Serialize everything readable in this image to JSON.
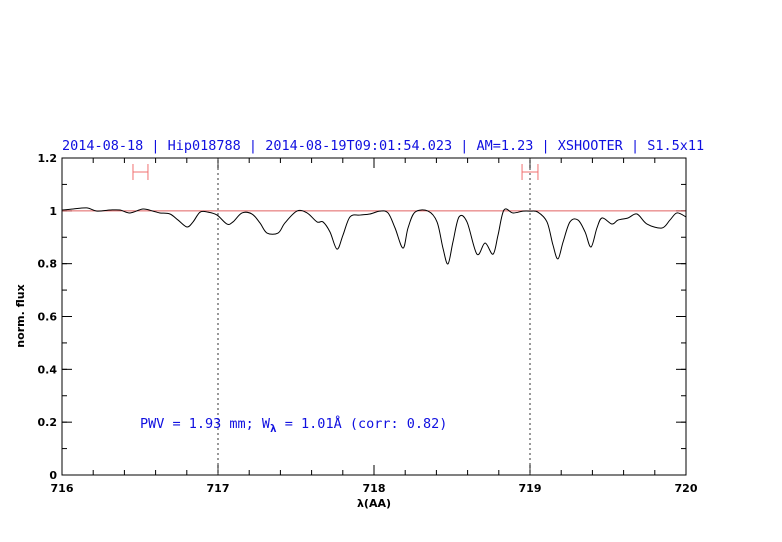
{
  "chart_data": {
    "type": "line",
    "title": "2014-08-18 | Hip018788 | 2014-08-19T09:01:54.023 | AM=1.23 | XSHOOTER | S1.5x11",
    "xlabel": "λ(AA)",
    "ylabel": "norm. flux",
    "xlim": [
      716,
      720
    ],
    "ylim": [
      0,
      1.2
    ],
    "x_ticks": [
      716,
      717,
      718,
      719,
      720
    ],
    "x_tick_labels": [
      "716",
      "717",
      "718",
      "719",
      "720"
    ],
    "x_minor_step": 0.2,
    "y_ticks": [
      0,
      0.2,
      0.4,
      0.6,
      0.8,
      1,
      1.2
    ],
    "y_tick_labels": [
      "0",
      "0.2",
      "0.4",
      "0.6",
      "0.8",
      "1",
      "1.2"
    ],
    "y_minor_step": 0.1,
    "grid": false,
    "reference_line": {
      "y": 1,
      "color": "#e06060"
    },
    "vertical_dotted_lines": [
      717,
      719
    ],
    "range_markers": [
      {
        "x0": 716.455,
        "x1": 716.551,
        "y": 1.147,
        "color": "#f07070"
      },
      {
        "x0": 718.949,
        "x1": 719.051,
        "y": 1.147,
        "color": "#f07070"
      }
    ],
    "annotation": {
      "text": "PWV = 1.93 mm; W",
      "subscript": "λ",
      "text_after": " = 1.01Å (corr: 0.82)",
      "x": 716.5,
      "y": 0.19
    },
    "colors": {
      "title": "#1010e0",
      "spectrum": "#000000"
    },
    "series": [
      {
        "x": [
          716.0,
          716.071,
          716.16,
          716.224,
          716.308,
          716.372,
          716.436,
          716.519,
          716.583,
          716.628,
          716.692,
          716.744,
          716.801,
          716.84,
          716.885,
          716.936,
          716.994,
          717.058,
          717.096,
          717.154,
          717.218,
          717.269,
          717.314,
          717.385,
          717.429,
          717.506,
          717.571,
          717.635,
          717.673,
          717.718,
          717.763,
          717.801,
          717.846,
          717.91,
          717.974,
          718.038,
          718.09,
          718.135,
          718.186,
          718.218,
          718.263,
          718.346,
          718.404,
          718.442,
          718.474,
          718.506,
          718.545,
          718.596,
          718.66,
          718.712,
          718.763,
          718.795,
          718.833,
          718.891,
          718.955,
          719.0,
          719.051,
          719.109,
          719.147,
          719.179,
          719.212,
          719.256,
          719.308,
          719.353,
          719.391,
          719.429,
          719.462,
          719.526,
          719.564,
          719.628,
          719.686,
          719.75,
          719.846,
          719.897,
          719.942,
          720.0
        ],
        "y": [
          1.003,
          1.007,
          1.011,
          0.999,
          1.003,
          1.003,
          0.992,
          1.007,
          0.999,
          0.992,
          0.988,
          0.965,
          0.939,
          0.958,
          0.995,
          0.995,
          0.984,
          0.95,
          0.958,
          0.992,
          0.988,
          0.954,
          0.916,
          0.916,
          0.954,
          0.999,
          0.992,
          0.958,
          0.958,
          0.92,
          0.855,
          0.908,
          0.977,
          0.984,
          0.988,
          0.999,
          0.992,
          0.935,
          0.859,
          0.935,
          0.995,
          0.999,
          0.958,
          0.859,
          0.799,
          0.882,
          0.977,
          0.958,
          0.836,
          0.878,
          0.836,
          0.908,
          1.003,
          0.992,
          0.999,
          0.999,
          0.995,
          0.958,
          0.871,
          0.818,
          0.882,
          0.958,
          0.965,
          0.92,
          0.863,
          0.935,
          0.973,
          0.95,
          0.965,
          0.973,
          0.988,
          0.95,
          0.935,
          0.965,
          0.992,
          0.977
        ]
      }
    ]
  }
}
